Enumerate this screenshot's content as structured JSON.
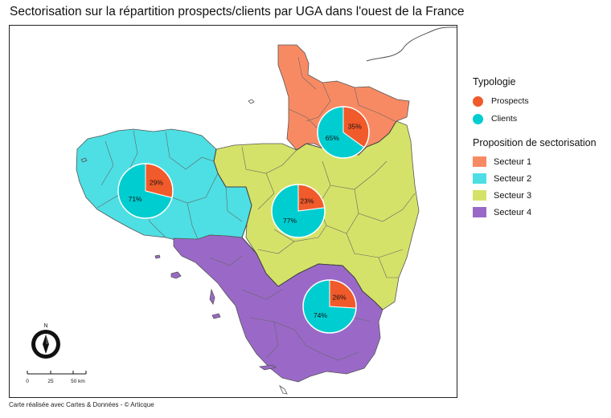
{
  "title": "Sectorisation sur la répartition prospects/clients par UGA dans l'ouest de la France",
  "credit": "Carte réalisée avec Cartes & Données - © Articque",
  "north_label": "N",
  "scale": {
    "labels": [
      "0",
      "25",
      "50 km"
    ]
  },
  "colors": {
    "prospects": "#f15a2b",
    "clients": "#00cdd0",
    "secteur_1": "#f88a63",
    "secteur_2": "#4ddfe3",
    "secteur_3": "#d5e269",
    "secteur_4": "#9a69c7",
    "border": "#555555"
  },
  "legend": {
    "typology_title": "Typologie",
    "typology_items": [
      {
        "label": "Prospects",
        "color": "#f15a2b"
      },
      {
        "label": "Clients",
        "color": "#00cdd0"
      }
    ],
    "sector_title": "Proposition de sectorisation",
    "sector_items": [
      {
        "label": "Secteur 1",
        "color": "#f88a63"
      },
      {
        "label": "Secteur 2",
        "color": "#4ddfe3"
      },
      {
        "label": "Secteur 3",
        "color": "#d5e269"
      },
      {
        "label": "Secteur 4",
        "color": "#9a69c7"
      }
    ]
  },
  "chart_data": {
    "type": "pie",
    "series": [
      {
        "name": "Secteur 1",
        "values": [
          35,
          65
        ],
        "labels": [
          "35%",
          "65%"
        ]
      },
      {
        "name": "Secteur 2",
        "values": [
          29,
          71
        ],
        "labels": [
          "29%",
          "71%"
        ]
      },
      {
        "name": "Secteur 3",
        "values": [
          23,
          77
        ],
        "labels": [
          "23%",
          "77%"
        ]
      },
      {
        "name": "Secteur 4",
        "values": [
          26,
          74
        ],
        "labels": [
          "26%",
          "74%"
        ]
      }
    ],
    "categories": [
      "Prospects",
      "Clients"
    ]
  }
}
